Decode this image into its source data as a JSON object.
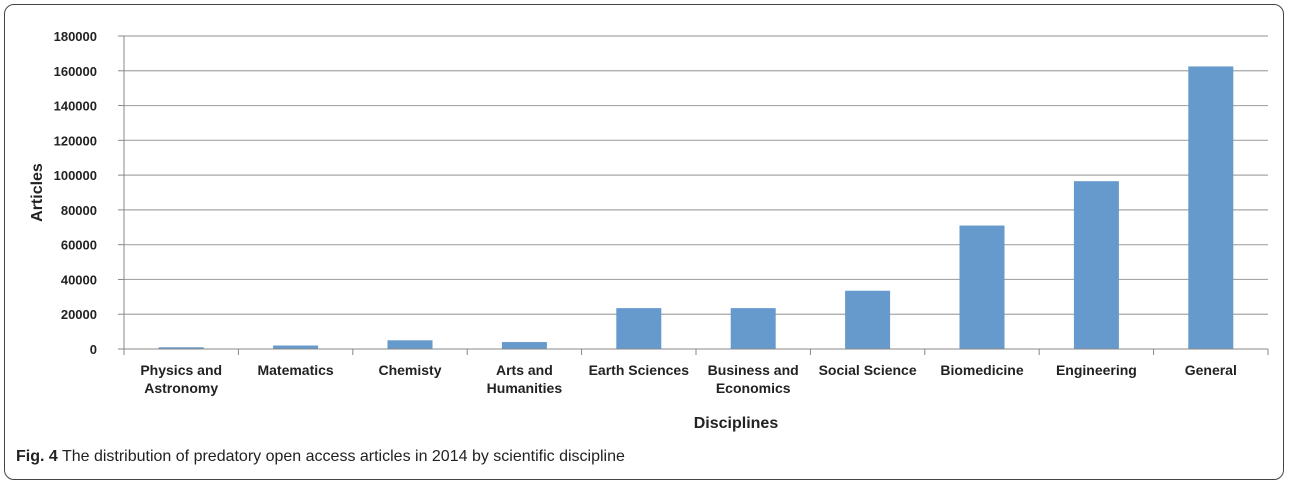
{
  "chart_data": {
    "type": "bar",
    "categories": [
      "Physics and Astronomy",
      "Matematics",
      "Chemisty",
      "Arts and Humanities",
      "Earth Sciences",
      "Business and Economics",
      "Social Science",
      "Biomedicine",
      "Engineering",
      "General"
    ],
    "category_lines": [
      [
        "Physics and",
        "Astronomy"
      ],
      [
        "Matematics"
      ],
      [
        "Chemisty"
      ],
      [
        "Arts and",
        "Humanities"
      ],
      [
        "Earth Sciences"
      ],
      [
        "Business and",
        "Economics"
      ],
      [
        "Social Science"
      ],
      [
        "Biomedicine"
      ],
      [
        "Engineering"
      ],
      [
        "General"
      ]
    ],
    "values": [
      1000,
      2000,
      5000,
      4000,
      23500,
      23500,
      33500,
      71000,
      96500,
      162500
    ],
    "xlabel": "Disciplines",
    "ylabel": "Articles",
    "ylim": [
      0,
      180000
    ],
    "yticks": [
      0,
      20000,
      40000,
      60000,
      80000,
      100000,
      120000,
      140000,
      160000,
      180000
    ],
    "grid": true,
    "bar_color": "#6699cc",
    "grid_color": "#a6a6a6"
  },
  "caption": {
    "label": "Fig. 4",
    "text": "The distribution of predatory open access articles in 2014 by scientific discipline"
  }
}
